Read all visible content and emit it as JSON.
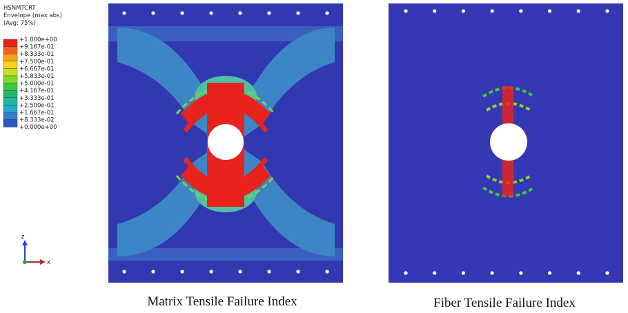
{
  "legend": {
    "variable": "HSNMTCRT",
    "subtitle": "Envelope (max abs)",
    "averaging": "(Avg: 75%)",
    "labels": [
      "+1.000e+00",
      "+9.167e-01",
      "+8.333e-01",
      "+7.500e-01",
      "+6.667e-01",
      "+5.833e-01",
      "+5.000e-01",
      "+4.167e-01",
      "+3.333e-01",
      "+2.500e-01",
      "+1.667e-01",
      "+8.333e-02",
      "+0.000e+00"
    ],
    "colors": [
      "#e8231c",
      "#f5601a",
      "#f9a21a",
      "#f5d21a",
      "#c8e01c",
      "#7fd82a",
      "#3cc83c",
      "#22b86a",
      "#1fb8a2",
      "#2ea6cc",
      "#2f7fd0",
      "#2f54c4"
    ]
  },
  "triad": {
    "z": "z",
    "x": "x"
  },
  "panels": [
    {
      "caption": "Matrix Tensile Failure Index"
    },
    {
      "caption": "Fiber Tensile Failure Index"
    }
  ]
}
